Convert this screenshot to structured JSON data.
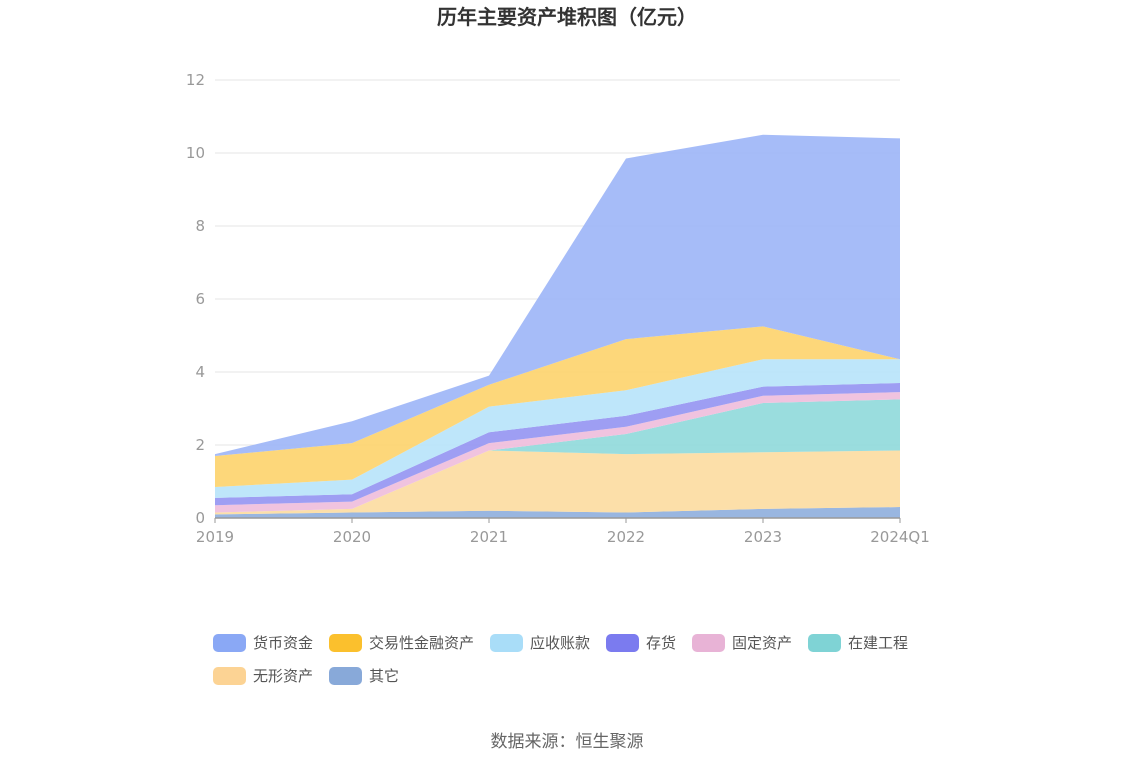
{
  "chart_data": {
    "type": "area",
    "stacked": true,
    "title": "历年主要资产堆积图（亿元）",
    "categories": [
      "2019",
      "2020",
      "2021",
      "2022",
      "2023",
      "2024Q1"
    ],
    "ylim": [
      0,
      12
    ],
    "yticks": [
      "0",
      "2",
      "4",
      "6",
      "8",
      "10",
      "12"
    ],
    "grid": true,
    "legend_position": "bottom",
    "series": [
      {
        "name": "其它",
        "color": "#8eaedd",
        "values": [
          0.1,
          0.15,
          0.2,
          0.15,
          0.25,
          0.3
        ]
      },
      {
        "name": "无形资产",
        "color": "#fcdba0",
        "values": [
          0.05,
          0.1,
          1.65,
          1.6,
          1.55,
          1.55
        ]
      },
      {
        "name": "在建工程",
        "color": "#8fd9da",
        "values": [
          0.0,
          0.0,
          0.0,
          0.55,
          1.35,
          1.4
        ]
      },
      {
        "name": "固定资产",
        "color": "#eebcdc",
        "values": [
          0.2,
          0.2,
          0.2,
          0.2,
          0.2,
          0.2
        ]
      },
      {
        "name": "存货",
        "color": "#9393f2",
        "values": [
          0.2,
          0.2,
          0.3,
          0.3,
          0.25,
          0.25
        ]
      },
      {
        "name": "应收账款",
        "color": "#b7e3fa",
        "values": [
          0.3,
          0.4,
          0.7,
          0.7,
          0.75,
          0.65
        ]
      },
      {
        "name": "交易性金融资产",
        "color": "#fdd36c",
        "values": [
          0.85,
          1.0,
          0.6,
          1.4,
          0.9,
          0.0
        ]
      },
      {
        "name": "货币资金",
        "color": "#9cb5f7",
        "values": [
          0.05,
          0.6,
          0.25,
          4.95,
          5.25,
          6.05
        ]
      }
    ],
    "legend": [
      {
        "name": "货币资金",
        "color": "#8aa8f5"
      },
      {
        "name": "交易性金融资产",
        "color": "#fbc02d"
      },
      {
        "name": "应收账款",
        "color": "#a9ddf8"
      },
      {
        "name": "存货",
        "color": "#7b7bef"
      },
      {
        "name": "固定资产",
        "color": "#e8b3d6"
      },
      {
        "name": "在建工程",
        "color": "#7fd3d5"
      },
      {
        "name": "无形资产",
        "color": "#fcd394"
      },
      {
        "name": "其它",
        "color": "#88a9d9"
      }
    ],
    "source": "数据来源：恒生聚源"
  }
}
